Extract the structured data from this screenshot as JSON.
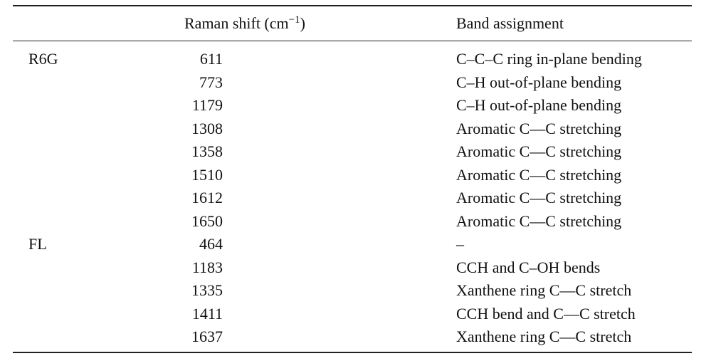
{
  "header": {
    "raman_shift": [
      "Raman shift (cm",
      "−1",
      ")"
    ],
    "band_assignment": "Band assignment"
  },
  "groups": [
    {
      "name": "R6G",
      "rows": [
        [
          611,
          "C–C–C ring in-plane bending"
        ],
        [
          773,
          "C–H out-of-plane bending"
        ],
        [
          1179,
          "C–H out-of-plane bending"
        ],
        [
          1308,
          "Aromatic C—C stretching"
        ],
        [
          1358,
          "Aromatic C—C stretching"
        ],
        [
          1510,
          "Aromatic C—C stretching"
        ],
        [
          1612,
          "Aromatic C—C stretching"
        ],
        [
          1650,
          "Aromatic C—C stretching"
        ]
      ]
    },
    {
      "name": "FL",
      "rows": [
        [
          464,
          "–"
        ],
        [
          1183,
          "CCH and C–OH bends"
        ],
        [
          1335,
          "Xanthene ring C—C stretch"
        ],
        [
          1411,
          "CCH bend and C—C stretch"
        ],
        [
          1637,
          "Xanthene ring C—C stretch"
        ]
      ]
    }
  ]
}
